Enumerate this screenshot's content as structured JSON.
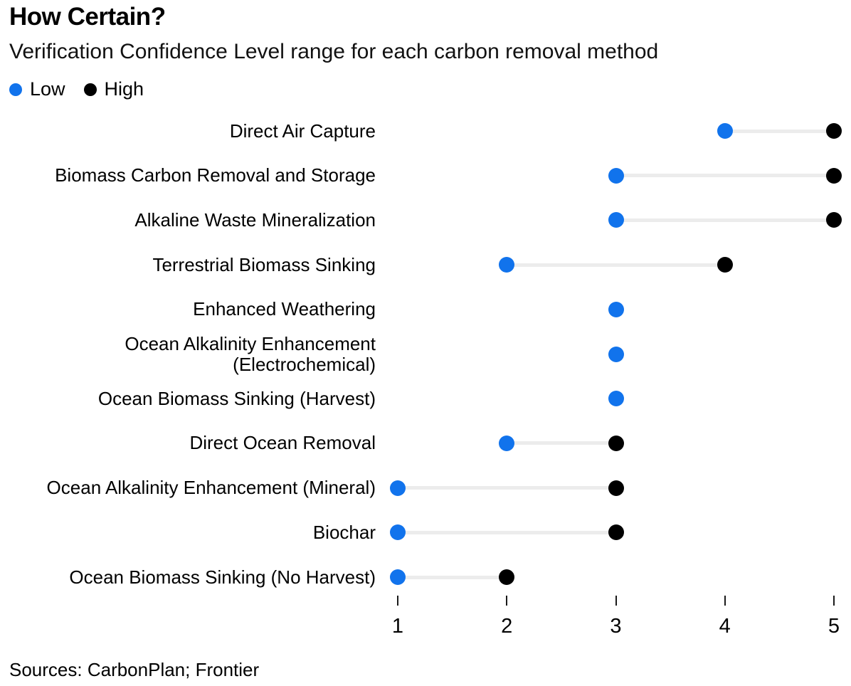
{
  "header": {
    "title": "How Certain?",
    "subtitle": "Verification Confidence Level range for each carbon removal method"
  },
  "legend": {
    "low_label": "Low",
    "high_label": "High",
    "low_color": "#1173EC",
    "high_color": "#000000"
  },
  "footer": {
    "sources": "Sources: CarbonPlan; Frontier"
  },
  "chart_data": {
    "type": "scatter",
    "variant": "dumbbell-range",
    "title": "How Certain?",
    "subtitle": "Verification Confidence Level range for each carbon removal method",
    "categories": [
      "Direct Air Capture",
      "Biomass Carbon Removal and Storage",
      "Alkaline Waste Mineralization",
      "Terrestrial Biomass Sinking",
      "Enhanced Weathering",
      "Ocean Alkalinity Enhancement (Electrochemical)",
      "Ocean Biomass Sinking (Harvest)",
      "Direct Ocean Removal",
      "Ocean Alkalinity Enhancement (Mineral)",
      "Biochar",
      "Ocean Biomass Sinking (No Harvest)"
    ],
    "series": [
      {
        "name": "Low",
        "color": "#1173EC",
        "values": [
          4,
          3,
          3,
          2,
          3,
          3,
          3,
          2,
          1,
          1,
          1
        ]
      },
      {
        "name": "High",
        "color": "#000000",
        "values": [
          5,
          5,
          5,
          4,
          null,
          null,
          null,
          3,
          3,
          3,
          2
        ]
      }
    ],
    "xlim": [
      1,
      5
    ],
    "x_ticks": [
      1,
      2,
      3,
      4,
      5
    ],
    "xlabel": "",
    "ylabel": "",
    "grid": false,
    "legend_position": "top-left",
    "connector_color": "#ececec"
  }
}
